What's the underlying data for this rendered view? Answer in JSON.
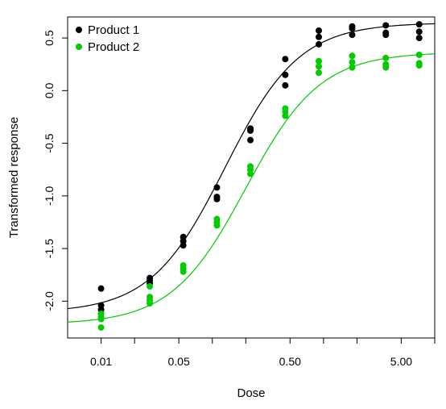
{
  "chart_data": {
    "type": "scatter",
    "title": "",
    "xlabel": "Dose",
    "ylabel": "Transformed response",
    "x_scale": "log10",
    "xlim": [
      0.005,
      10
    ],
    "ylim": [
      -2.35,
      0.7
    ],
    "x_ticks": [
      0.01,
      0.02,
      0.05,
      0.1,
      0.2,
      0.5,
      1,
      2,
      5,
      10
    ],
    "x_tick_labels": [
      "0.01",
      "",
      "0.05",
      "",
      "",
      "0.50",
      "",
      "",
      "5.00",
      ""
    ],
    "y_ticks": [
      -2.0,
      -1.5,
      -1.0,
      -0.5,
      0.0,
      0.5
    ],
    "y_tick_labels": [
      "-2.0",
      "-1.5",
      "-1.0",
      "-0.5",
      "0.0",
      "0.5"
    ],
    "grid": false,
    "legend_position": "top-left",
    "series": [
      {
        "name": "Product 1",
        "color": "#000000",
        "curve": {
          "lower": -2.11,
          "upper": 0.645,
          "ec50": 0.13,
          "hill": 1.3
        },
        "points": [
          [
            0.01,
            -1.88
          ],
          [
            0.01,
            -2.04
          ],
          [
            0.01,
            -2.08
          ],
          [
            0.01,
            -2.12
          ],
          [
            0.0274,
            -1.78
          ],
          [
            0.0274,
            -1.8
          ],
          [
            0.0274,
            -1.83
          ],
          [
            0.0548,
            -1.39
          ],
          [
            0.0548,
            -1.43
          ],
          [
            0.0548,
            -1.47
          ],
          [
            0.11,
            -0.92
          ],
          [
            0.11,
            -1.01
          ],
          [
            0.11,
            -1.03
          ],
          [
            0.22,
            -0.36
          ],
          [
            0.22,
            -0.38
          ],
          [
            0.22,
            -0.47
          ],
          [
            0.453,
            0.3
          ],
          [
            0.453,
            0.15
          ],
          [
            0.453,
            0.05
          ],
          [
            0.907,
            0.57
          ],
          [
            0.907,
            0.51
          ],
          [
            0.907,
            0.44
          ],
          [
            1.81,
            0.61
          ],
          [
            1.81,
            0.59
          ],
          [
            1.81,
            0.53
          ],
          [
            3.63,
            0.62
          ],
          [
            3.63,
            0.55
          ],
          [
            3.63,
            0.53
          ],
          [
            7.25,
            0.63
          ],
          [
            7.25,
            0.56
          ],
          [
            7.25,
            0.5
          ]
        ]
      },
      {
        "name": "Product 2",
        "color": "#00cc00",
        "curve": {
          "lower": -2.22,
          "upper": 0.365,
          "ec50": 0.2,
          "hill": 1.3
        },
        "points": [
          [
            0.01,
            -2.12
          ],
          [
            0.01,
            -2.15
          ],
          [
            0.01,
            -2.17
          ],
          [
            0.01,
            -2.25
          ],
          [
            0.0274,
            -1.86
          ],
          [
            0.0274,
            -1.96
          ],
          [
            0.0274,
            -1.99
          ],
          [
            0.0274,
            -2.02
          ],
          [
            0.0548,
            -1.66
          ],
          [
            0.0548,
            -1.69
          ],
          [
            0.0548,
            -1.72
          ],
          [
            0.11,
            -1.22
          ],
          [
            0.11,
            -1.25
          ],
          [
            0.11,
            -1.28
          ],
          [
            0.22,
            -0.72
          ],
          [
            0.22,
            -0.75
          ],
          [
            0.22,
            -0.79
          ],
          [
            0.453,
            -0.17
          ],
          [
            0.453,
            -0.2
          ],
          [
            0.453,
            -0.24
          ],
          [
            0.907,
            0.28
          ],
          [
            0.907,
            0.23
          ],
          [
            0.907,
            0.17
          ],
          [
            1.81,
            0.33
          ],
          [
            1.81,
            0.27
          ],
          [
            1.81,
            0.22
          ],
          [
            3.63,
            0.31
          ],
          [
            3.63,
            0.25
          ],
          [
            3.63,
            0.22
          ],
          [
            7.25,
            0.34
          ],
          [
            7.25,
            0.26
          ],
          [
            7.25,
            0.24
          ]
        ]
      }
    ]
  }
}
